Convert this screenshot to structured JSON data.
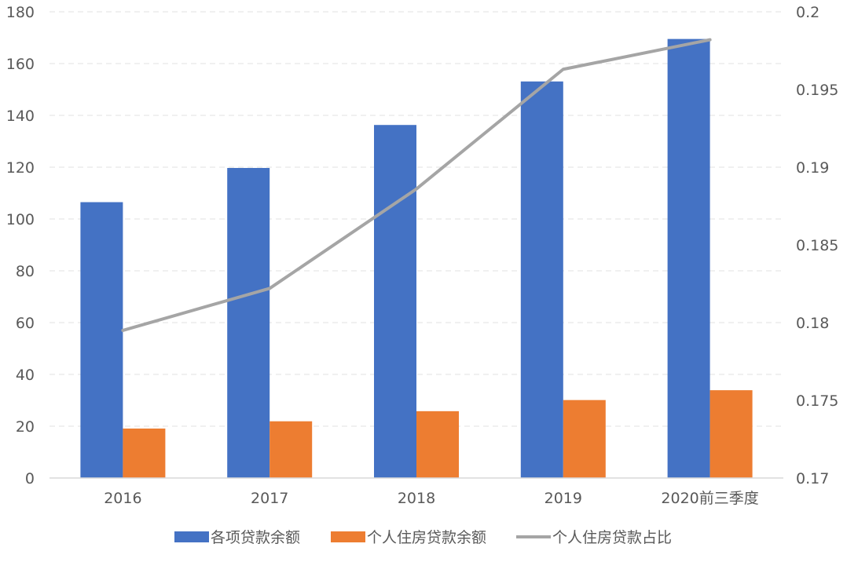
{
  "chart_data": {
    "type": "bar",
    "categories": [
      "2016",
      "2017",
      "2018",
      "2019",
      "2020前三季度"
    ],
    "series": [
      {
        "name": "各项贷款余额",
        "type": "bar",
        "axis": "left",
        "color": "#4472C4",
        "values": [
          106.5,
          119.7,
          136.3,
          153.1,
          169.5
        ]
      },
      {
        "name": "个人住房贷款余额",
        "type": "bar",
        "axis": "left",
        "color": "#ED7D31",
        "values": [
          19.1,
          21.9,
          25.8,
          30.1,
          33.9
        ]
      },
      {
        "name": "个人住房贷款占比",
        "type": "line",
        "axis": "right",
        "color": "#A5A5A5",
        "values": [
          0.1795,
          0.1822,
          0.1886,
          0.1963,
          0.1982
        ]
      }
    ],
    "y_left": {
      "ylim": [
        0,
        180
      ],
      "ticks": [
        "0",
        "20",
        "40",
        "60",
        "80",
        "100",
        "120",
        "140",
        "160",
        "180"
      ]
    },
    "y_right": {
      "ylim": [
        0.17,
        0.2
      ],
      "ticks": [
        "0.17",
        "0.175",
        "0.18",
        "0.185",
        "0.19",
        "0.195",
        "0.2"
      ]
    },
    "grid": true,
    "legend_position": "bottom"
  }
}
